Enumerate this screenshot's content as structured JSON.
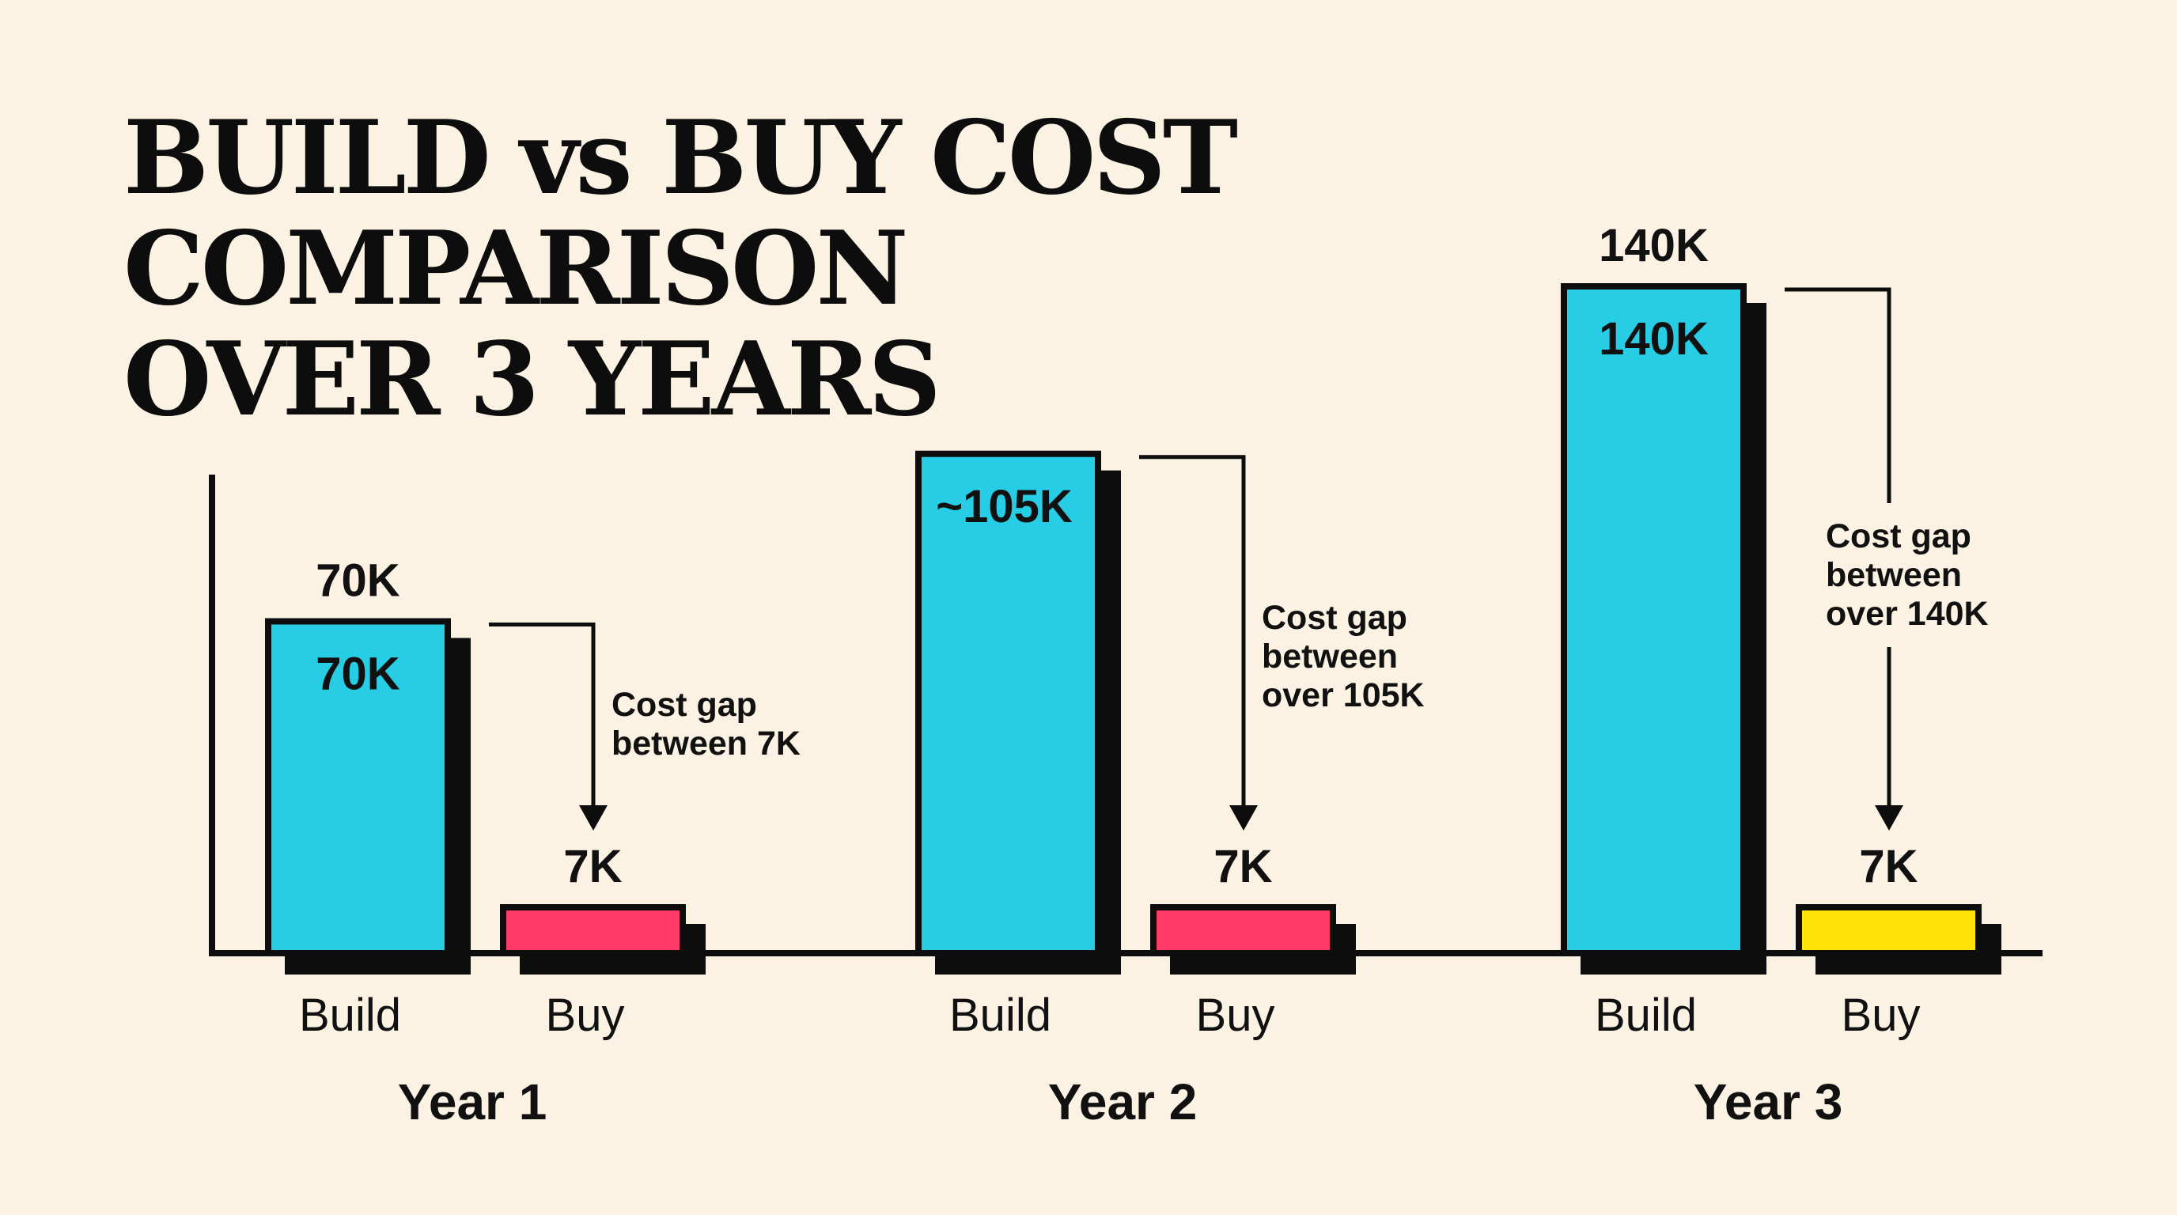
{
  "chart_data": {
    "type": "bar",
    "title_lines": [
      "BUILD vs BUY COST",
      "COMPARISON",
      "OVER 3 YEARS"
    ],
    "xlabel": "",
    "ylabel": "",
    "grid": false,
    "legend": "none",
    "groups": [
      {
        "label": "Year 1",
        "bars": [
          {
            "category": "Build",
            "value": 70000,
            "label_above": "70K",
            "label_inside": "70K",
            "color": "#27cde5"
          },
          {
            "category": "Buy",
            "value": 7000,
            "label_above": "7K",
            "color": "#ff3a66"
          }
        ],
        "annotation": [
          "Cost gap",
          "between 7K"
        ]
      },
      {
        "label": "Year 2",
        "bars": [
          {
            "category": "Build",
            "value": 105000,
            "label_inside": "~105K",
            "color": "#27cde5"
          },
          {
            "category": "Buy",
            "value": 7000,
            "label_above": "7K",
            "color": "#ff3a66"
          }
        ],
        "annotation": [
          "Cost gap",
          "between",
          "over 105K"
        ]
      },
      {
        "label": "Year 3",
        "bars": [
          {
            "category": "Build",
            "value": 140000,
            "label_above": "140K",
            "label_inside": "140K",
            "color": "#27cde5"
          },
          {
            "category": "Buy",
            "value": 7000,
            "label_above": "7K",
            "color": "#ffe40a"
          }
        ],
        "annotation": [
          "Cost gap",
          "between",
          "over 140K"
        ]
      }
    ]
  }
}
